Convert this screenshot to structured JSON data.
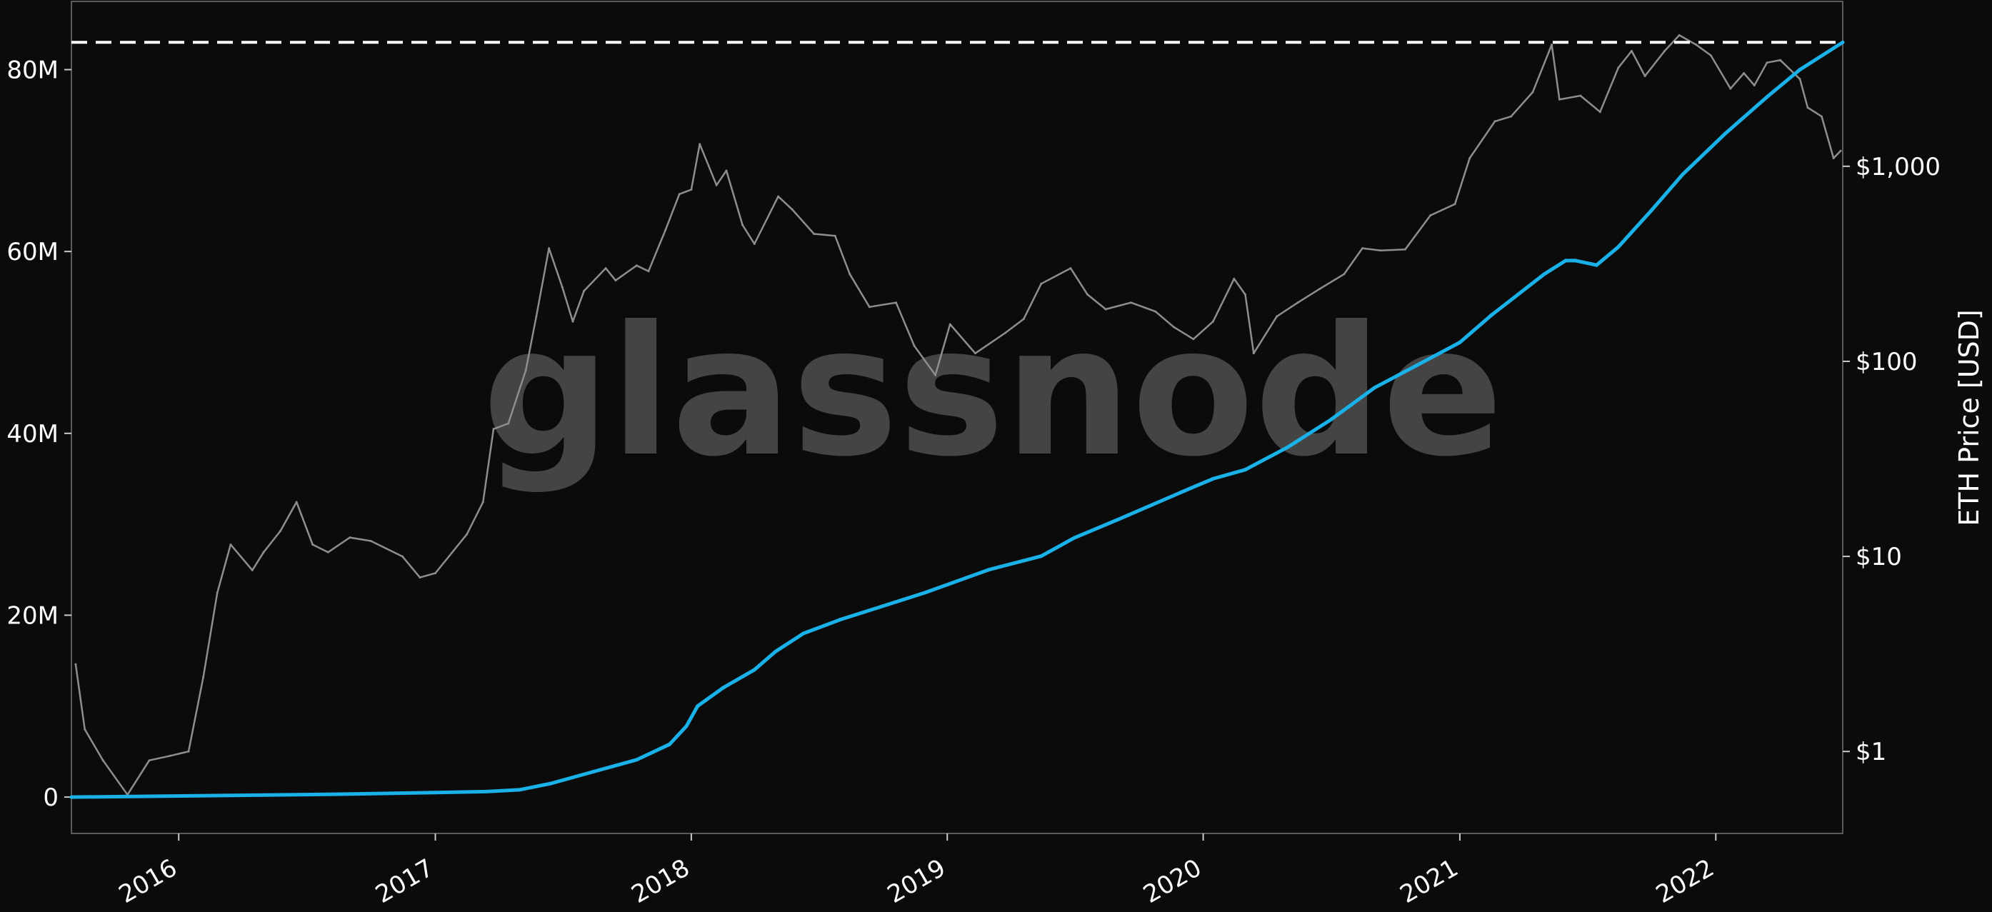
{
  "chart_data": {
    "type": "line",
    "title": "",
    "watermark": "glassnode",
    "x_axis": {
      "tick_labels": [
        "2016",
        "2017",
        "2018",
        "2019",
        "2020",
        "2021",
        "2022"
      ],
      "range": [
        "2015-08-01",
        "2022-07-01"
      ]
    },
    "y_left": {
      "label": "",
      "range": [
        -4000000,
        87500000
      ],
      "ticks": [
        0,
        20000000,
        40000000,
        60000000,
        80000000
      ],
      "tick_labels": [
        "0",
        "20M",
        "40M",
        "60M",
        "80M"
      ]
    },
    "y_right": {
      "label": "ETH Price [USD]",
      "scale": "log",
      "range": [
        0.38,
        7000
      ],
      "ticks": [
        1,
        10,
        100,
        1000
      ],
      "tick_labels": [
        "$1",
        "$10",
        "$100",
        "$1,000"
      ]
    },
    "reference_line": {
      "axis": "left",
      "value": 83000000,
      "style": "dashed",
      "color": "#ffffff"
    },
    "grid": false,
    "series": [
      {
        "axis": "left",
        "color": "#1ab0e8",
        "x": [
          "2015-08-01",
          "2016-08-01",
          "2017-01-01",
          "2017-03-15",
          "2017-05-01",
          "2017-06-15",
          "2017-08-15",
          "2017-10-15",
          "2017-12-01",
          "2017-12-25",
          "2018-01-10",
          "2018-02-15",
          "2018-04-01",
          "2018-05-01",
          "2018-06-10",
          "2018-08-01",
          "2018-10-01",
          "2018-12-01",
          "2019-03-01",
          "2019-05-15",
          "2019-07-01",
          "2019-09-01",
          "2019-12-15",
          "2020-01-15",
          "2020-03-01",
          "2020-05-01",
          "2020-07-01",
          "2020-09-01",
          "2020-11-01",
          "2021-01-01",
          "2021-02-15",
          "2021-05-01",
          "2021-06-01",
          "2021-06-15",
          "2021-07-15",
          "2021-08-15",
          "2021-10-01",
          "2021-11-15",
          "2022-01-15",
          "2022-03-15",
          "2022-05-01",
          "2022-07-01"
        ],
        "y": [
          0,
          300000,
          500000,
          600000,
          800000,
          1500000,
          2800000,
          4100000,
          5800000,
          7800000,
          10000000,
          12000000,
          14000000,
          16000000,
          18000000,
          19500000,
          21000000,
          22500000,
          25000000,
          26500000,
          28500000,
          30500000,
          34000000,
          35000000,
          36000000,
          38500000,
          41500000,
          45000000,
          47500000,
          50000000,
          53000000,
          57500000,
          59000000,
          59000000,
          58500000,
          60500000,
          64500000,
          68500000,
          73000000,
          77000000,
          80000000,
          83000000
        ]
      },
      {
        "axis": "right",
        "color": "#8e8e8e",
        "x": [
          "2015-08-07",
          "2015-08-20",
          "2015-09-15",
          "2015-10-20",
          "2015-11-20",
          "2015-12-20",
          "2016-01-15",
          "2016-02-05",
          "2016-02-25",
          "2016-03-15",
          "2016-04-15",
          "2016-05-01",
          "2016-05-25",
          "2016-06-17",
          "2016-07-10",
          "2016-08-01",
          "2016-09-01",
          "2016-10-01",
          "2016-11-15",
          "2016-12-10",
          "2017-01-01",
          "2017-02-15",
          "2017-03-10",
          "2017-03-25",
          "2017-04-15",
          "2017-05-10",
          "2017-05-25",
          "2017-06-12",
          "2017-07-01",
          "2017-07-16",
          "2017-08-01",
          "2017-09-01",
          "2017-09-15",
          "2017-10-15",
          "2017-11-01",
          "2017-11-25",
          "2017-12-15",
          "2018-01-01",
          "2018-01-13",
          "2018-02-06",
          "2018-02-20",
          "2018-03-15",
          "2018-04-01",
          "2018-05-05",
          "2018-05-25",
          "2018-06-25",
          "2018-07-25",
          "2018-08-15",
          "2018-09-12",
          "2018-10-20",
          "2018-11-15",
          "2018-12-15",
          "2019-01-05",
          "2019-02-10",
          "2019-03-25",
          "2019-04-20",
          "2019-05-15",
          "2019-06-26",
          "2019-07-20",
          "2019-08-15",
          "2019-09-20",
          "2019-10-25",
          "2019-11-20",
          "2019-12-18",
          "2020-01-15",
          "2020-02-14",
          "2020-03-01",
          "2020-03-13",
          "2020-04-15",
          "2020-05-15",
          "2020-06-15",
          "2020-07-20",
          "2020-08-15",
          "2020-09-10",
          "2020-10-15",
          "2020-11-20",
          "2020-12-25",
          "2021-01-15",
          "2021-02-20",
          "2021-03-15",
          "2021-04-15",
          "2021-05-12",
          "2021-05-23",
          "2021-06-22",
          "2021-07-20",
          "2021-08-15",
          "2021-09-03",
          "2021-09-22",
          "2021-10-20",
          "2021-11-10",
          "2021-12-04",
          "2021-12-25",
          "2022-01-22",
          "2022-02-10",
          "2022-02-25",
          "2022-03-15",
          "2022-04-03",
          "2022-05-01",
          "2022-05-12",
          "2022-06-01",
          "2022-06-18",
          "2022-06-28"
        ],
        "y": [
          2.8,
          1.3,
          0.9,
          0.6,
          0.9,
          0.95,
          1.0,
          2.4,
          6.5,
          11.5,
          8.5,
          10.5,
          13.5,
          19,
          11.5,
          10.5,
          12.5,
          12,
          10,
          7.8,
          8.2,
          13,
          19,
          45,
          48,
          90,
          170,
          380,
          240,
          160,
          230,
          300,
          260,
          310,
          290,
          470,
          720,
          760,
          1300,
          800,
          950,
          500,
          400,
          700,
          600,
          450,
          440,
          280,
          190,
          200,
          120,
          85,
          155,
          110,
          140,
          165,
          250,
          300,
          220,
          185,
          200,
          180,
          150,
          130,
          160,
          265,
          220,
          110,
          170,
          200,
          235,
          280,
          380,
          370,
          375,
          560,
          640,
          1100,
          1700,
          1800,
          2400,
          4200,
          2200,
          2300,
          1900,
          3200,
          3900,
          2900,
          3900,
          4700,
          4200,
          3700,
          2500,
          3000,
          2600,
          3400,
          3500,
          2800,
          2000,
          1800,
          1100,
          1200
        ]
      }
    ]
  }
}
